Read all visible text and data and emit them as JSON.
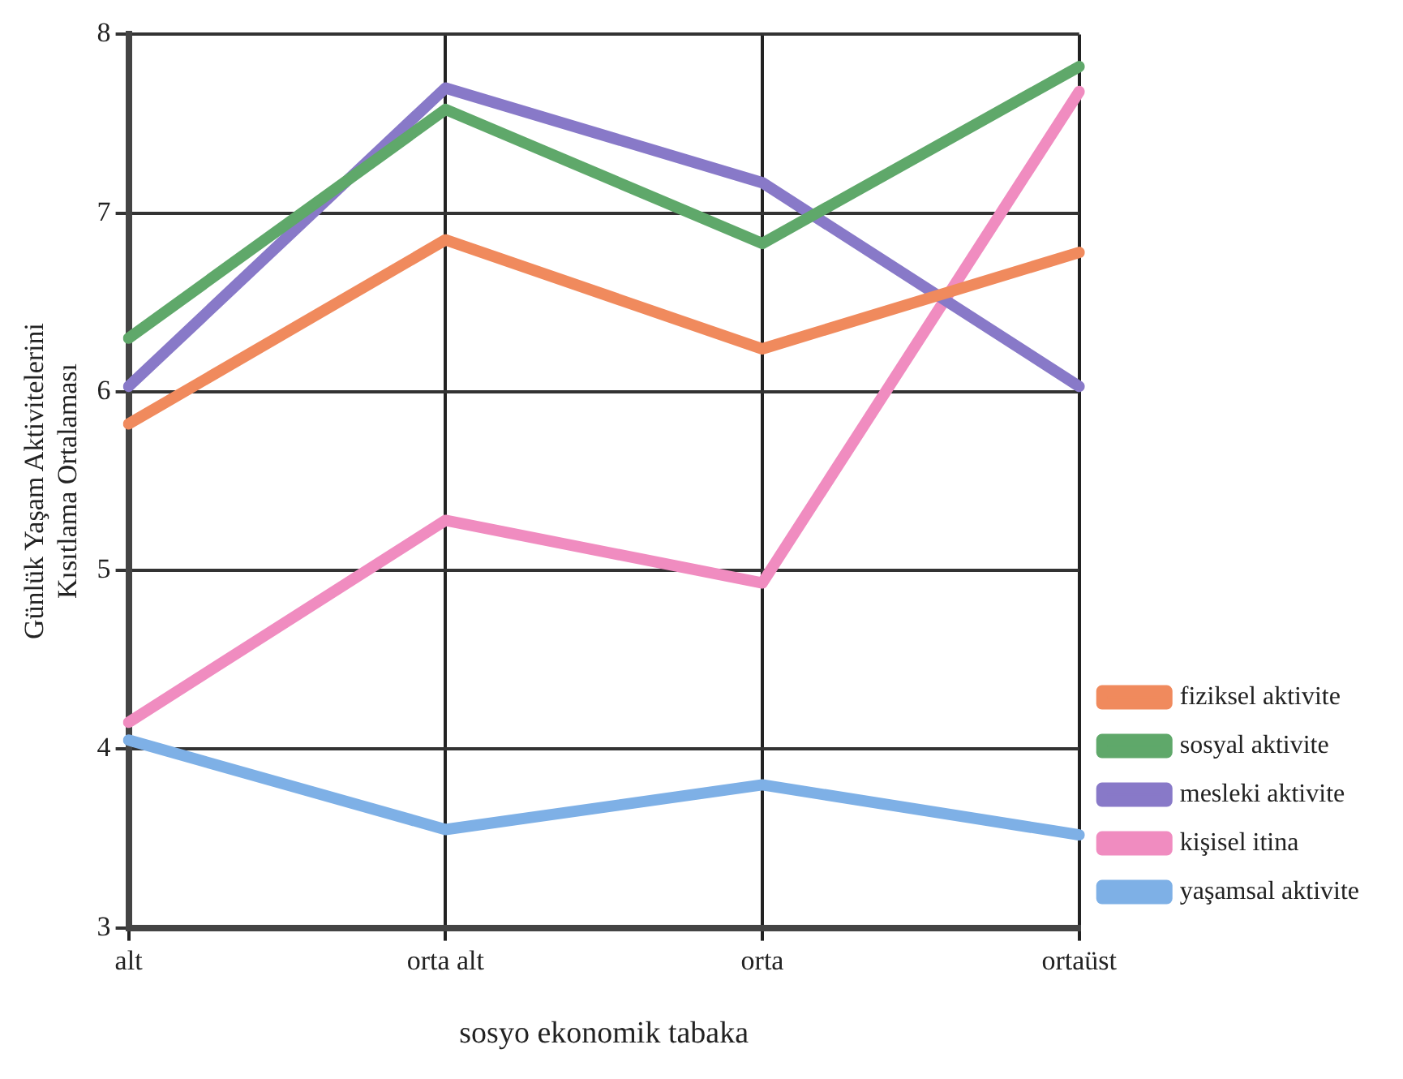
{
  "chart_data": {
    "type": "line",
    "xlabel": "sosyo ekonomik tabaka",
    "ylabel": "Günlük Yaşam Aktivitelerini\nKısıtlama Ortalaması",
    "categories": [
      "alt",
      "orta alt",
      "orta",
      "ortaüst"
    ],
    "series": [
      {
        "name": "fiziksel aktivite",
        "color": "#f08a5d",
        "values": [
          5.82,
          6.85,
          6.24,
          6.78
        ]
      },
      {
        "name": "sosyal aktivite",
        "color": "#5fa86a",
        "values": [
          6.3,
          7.58,
          6.83,
          7.82
        ]
      },
      {
        "name": "mesleki aktivite",
        "color": "#8879c8",
        "values": [
          6.03,
          7.7,
          7.17,
          6.03
        ]
      },
      {
        "name": "kişisel itina",
        "color": "#f08cc0",
        "values": [
          4.15,
          5.28,
          4.93,
          7.68
        ]
      },
      {
        "name": "yaşamsal aktivite",
        "color": "#7eb0e6",
        "values": [
          4.05,
          3.55,
          3.8,
          3.52
        ]
      }
    ],
    "ylim": [
      3,
      8
    ],
    "yticks": [
      3,
      4,
      5,
      6,
      7,
      8
    ],
    "grid": true,
    "legend": "bottom right",
    "marker": "none",
    "line_style": "solid"
  }
}
